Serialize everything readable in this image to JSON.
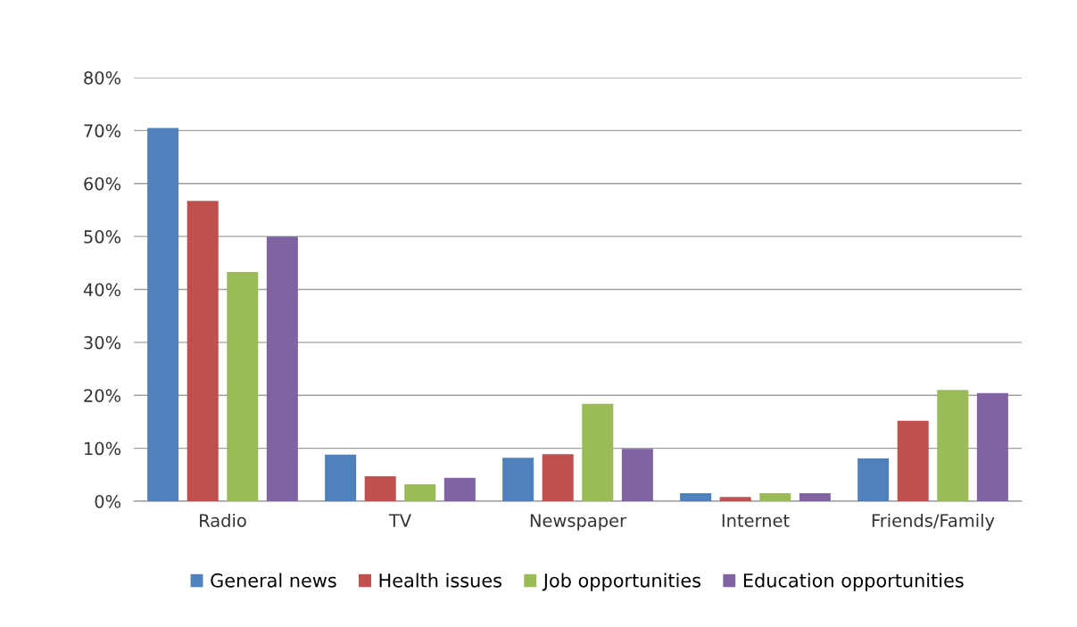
{
  "chart_data": {
    "type": "bar",
    "categories": [
      "Radio",
      "TV",
      "Newspaper",
      "Internet",
      "Friends/Family"
    ],
    "series": [
      {
        "name": "General news",
        "color": "#4f81bd",
        "values": [
          70.5,
          8.8,
          8.2,
          1.5,
          8.1
        ]
      },
      {
        "name": "Health issues",
        "color": "#c0504d",
        "values": [
          56.7,
          4.7,
          8.9,
          0.8,
          15.2
        ]
      },
      {
        "name": "Job opportunities",
        "color": "#9bbb59",
        "values": [
          43.3,
          3.2,
          18.4,
          1.5,
          21.0
        ]
      },
      {
        "name": "Education opportunities",
        "color": "#8064a2",
        "values": [
          50.0,
          4.4,
          9.9,
          1.5,
          20.4
        ]
      }
    ],
    "ylim": [
      0,
      80
    ],
    "yticks": [
      {
        "value": 0,
        "label": "0%"
      },
      {
        "value": 10,
        "label": "10%"
      },
      {
        "value": 20,
        "label": "20%"
      },
      {
        "value": 30,
        "label": "30%"
      },
      {
        "value": 40,
        "label": "40%"
      },
      {
        "value": 50,
        "label": "50%"
      },
      {
        "value": 60,
        "label": "60%"
      },
      {
        "value": 70,
        "label": "70%"
      },
      {
        "value": 80,
        "label": "80%"
      }
    ],
    "grid": "y",
    "legend": "bottom"
  }
}
